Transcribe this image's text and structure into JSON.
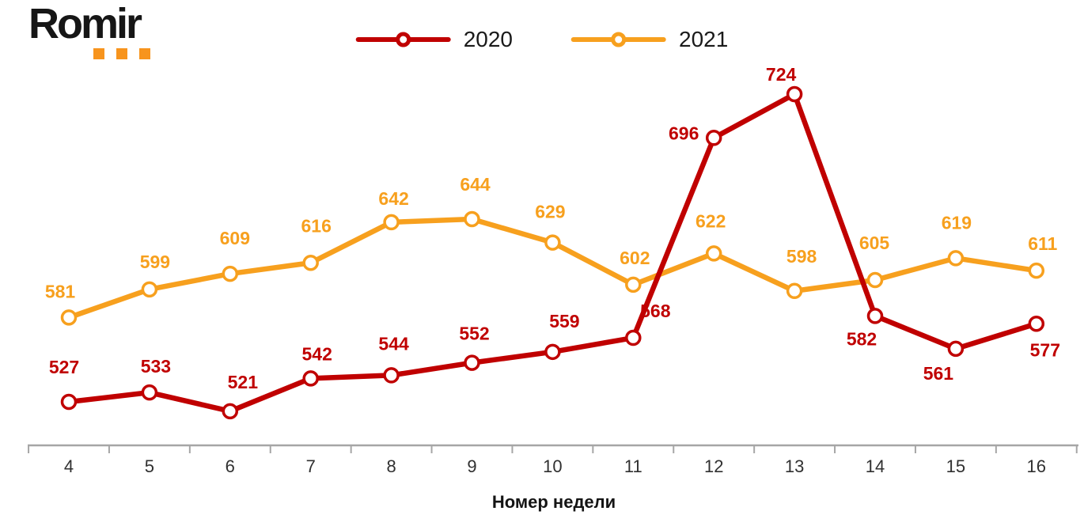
{
  "logo": {
    "text": "Romir",
    "dot_color": "#F7941D"
  },
  "chart_data": {
    "type": "line",
    "title": "",
    "xlabel": "Номер недели",
    "ylabel": "",
    "categories": [
      "4",
      "5",
      "6",
      "7",
      "8",
      "9",
      "10",
      "11",
      "12",
      "13",
      "14",
      "15",
      "16"
    ],
    "series": [
      {
        "name": "2020",
        "color": "#C00000",
        "values": [
          527,
          533,
          521,
          542,
          544,
          552,
          559,
          568,
          696,
          724,
          582,
          561,
          577
        ],
        "label_dx": [
          -6,
          8,
          16,
          8,
          3,
          3,
          15,
          28,
          -38,
          -17,
          -17,
          -22,
          11
        ],
        "label_dy": [
          -44,
          -33,
          -37,
          -31,
          -40,
          -37,
          -39,
          -34,
          -6,
          -25,
          29,
          31,
          33
        ]
      },
      {
        "name": "2021",
        "color": "#F7A01E",
        "values": [
          581,
          599,
          609,
          616,
          642,
          644,
          629,
          602,
          622,
          598,
          605,
          619,
          611
        ],
        "label_dx": [
          -11,
          7,
          6,
          7,
          3,
          4,
          -3,
          2,
          -4,
          9,
          -1,
          1,
          8
        ],
        "label_dy": [
          -33,
          -35,
          -45,
          -47,
          -30,
          -44,
          -39,
          -34,
          -41,
          -44,
          -47,
          -45,
          -34
        ]
      }
    ],
    "value_range_hint": [
      500,
      750
    ],
    "grid": false,
    "marker": "circle-open",
    "legend_position": "top-center",
    "axis_color": "#A6A6A6",
    "tick_label_color": "#303030",
    "axis_title_color": "#141414"
  }
}
